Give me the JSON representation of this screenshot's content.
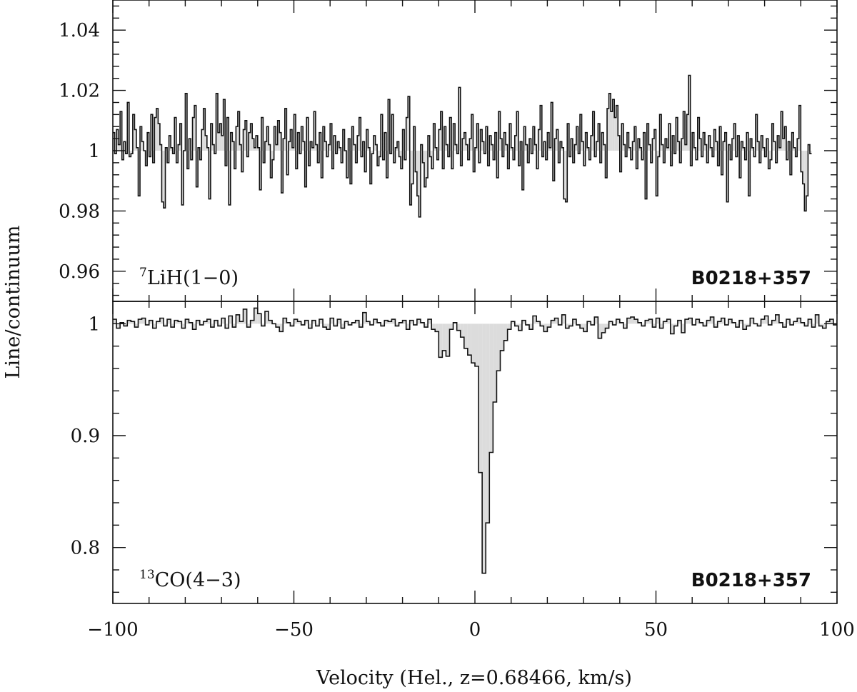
{
  "figure": {
    "ylabel": "Line/continuum",
    "xlabel": "Velocity (Hel., z=0.68466, km/s)"
  },
  "colors": {
    "fill": "#dcdcdc",
    "line": "#111111"
  },
  "chart_data": [
    {
      "type": "line",
      "style": "histogram-step",
      "panel": "top",
      "label_base": "LiH(1−0)",
      "label_sup": "7",
      "source": "B0218+357",
      "xlim": [
        -100,
        100
      ],
      "ylim": [
        0.95,
        1.05
      ],
      "baseline": 1.0,
      "yticks": [
        0.96,
        0.98,
        1.0,
        1.02,
        1.04
      ],
      "ytick_labels": [
        "0.96",
        "0.98",
        "1",
        "1.02",
        "1.04"
      ],
      "x_start": -100,
      "x_step": 0.5,
      "values": [
        1.006,
        0.999,
        1.007,
        1.002,
        1.013,
        0.997,
        1.003,
        0.999,
        1.016,
        0.998,
        0.999,
        1.012,
        1.007,
        1.001,
        0.985,
        1.008,
        1.003,
        1.0,
        0.995,
        1.006,
        0.998,
        1.012,
        0.996,
        1.011,
        1.014,
        1.009,
        1.002,
        0.983,
        0.981,
        1.001,
        0.996,
        1.005,
        1.001,
        0.999,
        1.011,
        0.996,
        1.002,
        1.009,
        0.982,
        1.0,
        1.019,
        0.994,
        1.004,
        0.997,
        1.011,
        1.015,
        0.988,
        1.001,
        0.997,
        1.007,
        1.014,
        1.005,
        1.001,
        0.984,
        1.009,
        1.002,
        0.999,
        1.019,
        1.006,
        1.009,
        1.005,
        1.017,
        0.995,
        1.011,
        0.982,
        1.006,
        1.003,
        0.994,
        1.008,
        1.013,
        1.002,
        0.993,
        1.007,
        1.01,
        0.998,
        1.006,
        1.009,
        1.004,
        1.001,
        1.005,
        1.001,
        0.987,
        1.011,
        0.996,
        1.003,
        1.008,
        1.002,
        0.991,
        0.997,
        1.008,
        1.002,
        1.01,
        1.006,
        0.986,
        1.004,
        1.014,
        0.992,
        1.003,
        1.007,
        1.001,
        1.012,
        0.994,
        1.006,
        0.999,
        1.008,
        1.003,
        0.988,
        1.011,
        0.995,
        1.003,
        1.001,
        1.013,
        1.002,
        0.996,
        1.006,
        0.991,
        1.008,
        1.003,
        0.998,
        1.002,
        1.009,
        0.994,
        1.005,
        0.999,
        1.003,
        1.001,
        0.996,
        1.007,
        1.0,
        0.991,
        1.004,
        0.989,
        1.008,
        1.002,
        0.996,
        1.005,
        1.011,
        0.998,
        1.003,
        0.993,
        1.007,
        1.001,
        0.989,
        0.999,
        1.005,
        1.002,
        0.995,
        0.998,
        1.012,
        0.997,
        1.006,
        0.991,
        1.017,
        0.999,
        1.012,
        0.996,
        1.001,
        1.003,
        0.998,
        0.994,
        1.007,
        0.997,
        1.011,
        1.018,
        0.982,
        0.989,
        1.008,
        0.993,
        0.985,
        0.978,
        1.002,
        0.996,
        0.988,
        0.991,
        1.005,
        0.998,
        0.994,
        1.009,
        1.001,
        0.997,
        1.007,
        1.013,
        0.994,
        1.008,
        1.002,
        0.998,
        1.011,
        0.994,
        1.009,
        1.002,
        0.999,
        1.021,
        0.995,
        1.004,
        1.006,
        1.002,
        0.997,
        1.004,
        1.012,
        0.993,
        1.001,
        1.009,
        0.996,
        1.007,
        1.003,
        0.999,
        1.008,
        0.995,
        1.005,
        1.002,
        0.997,
        1.006,
        0.991,
        1.013,
        1.004,
        0.998,
        1.006,
        1.002,
        0.994,
        1.009,
        1.001,
        0.997,
        1.005,
        1.013,
        0.995,
        1.003,
        0.987,
        1.008,
        1.002,
        0.996,
        1.004,
        0.999,
        1.008,
        1.002,
        0.994,
        1.007,
        1.015,
        0.998,
        1.003,
        0.997,
        1.006,
        1.001,
        1.016,
        0.99,
        1.004,
        1.007,
        0.996,
        1.003,
        1.001,
        0.984,
        0.983,
        1.009,
        0.998,
        1.004,
        0.996,
        1.002,
        1.008,
        0.999,
        1.012,
        1.003,
        0.995,
        1.006,
        1.001,
        0.997,
        1.005,
        1.013,
        0.998,
        1.003,
        1.009,
        0.996,
        1.006,
        1.002,
        0.991,
        1.014,
        1.019,
        1.013,
        1.017,
        1.011,
        1.015,
        1.005,
        0.993,
        1.009,
        1.002,
        0.998,
        1.006,
        1.001,
        0.997,
        1.003,
        1.008,
        0.994,
        1.004,
        1.001,
        0.997,
        1.006,
        0.984,
        1.009,
        1.002,
        0.996,
        1.004,
        1.007,
        0.985,
        0.998,
        1.012,
        1.002,
        0.996,
        1.004,
        1.001,
        1.009,
        0.995,
        1.005,
        0.999,
        1.011,
        1.003,
        0.996,
        1.004,
        1.013,
        1.002,
        1.012,
        1.025,
        0.995,
        1.006,
        1.001,
        0.997,
        1.011,
        1.004,
        0.998,
        1.006,
        1.002,
        0.996,
        1.005,
        1.001,
        0.998,
        1.007,
        1.003,
        0.995,
        1.008,
        0.992,
        1.003,
        1.006,
        0.983,
        1.002,
        0.997,
        1.004,
        1.009,
        0.998,
        1.005,
        0.991,
        1.003,
        1.001,
        0.997,
        1.006,
        0.985,
        1.004,
        1.001,
        0.998,
        1.012,
        1.003,
        0.996,
        1.005,
        1.001,
        0.998,
        1.004,
        0.994,
        0.997,
        1.009,
        1.003,
        0.996,
        1.005,
        1.001,
        1.013,
        1.004,
        1.008,
        0.997,
        1.003,
        0.992,
        1.006,
        1.001,
        0.998,
        1.004,
        1.015,
        0.993,
        0.989,
        0.98,
        0.985,
        1.002,
        0.999
      ]
    },
    {
      "type": "line",
      "style": "histogram-step",
      "panel": "bottom",
      "label_base": "CO(4−3)",
      "label_sup": "13",
      "source": "B0218+357",
      "xlim": [
        -100,
        100
      ],
      "ylim": [
        0.75,
        1.02
      ],
      "baseline": 1.0,
      "yticks": [
        0.8,
        0.9,
        1.0
      ],
      "ytick_labels": [
        "0.8",
        "0.9",
        "1"
      ],
      "x_start": -100,
      "x_step": 1.0,
      "values": [
        1.004,
        0.996,
        1.001,
        0.998,
        1.003,
        1.002,
        0.997,
        1.004,
        1.005,
        0.999,
        1.003,
        0.996,
        1.002,
        1.005,
        0.998,
        1.004,
        0.997,
        1.003,
        1.002,
        0.996,
        1.004,
        1.001,
        0.995,
        1.003,
        0.999,
        1.002,
        1.004,
        0.997,
        1.003,
        0.998,
        1.005,
        0.996,
        1.007,
        0.997,
        1.008,
        1.002,
        1.013,
        0.997,
        1.003,
        1.014,
        1.009,
        0.998,
        1.011,
        1.003,
        1.0,
        0.997,
        0.993,
        1.005,
        1.001,
        0.998,
        1.004,
        1.002,
        0.999,
        1.003,
        0.996,
        1.003,
        0.998,
        1.004,
        0.997,
        0.995,
        1.005,
        0.998,
        1.004,
        0.996,
        1.002,
        0.999,
        1.001,
        1.003,
        0.997,
        1.01,
        1.002,
        0.999,
        1.004,
        1.001,
        0.998,
        1.003,
        1.002,
        1.004,
        0.998,
        1.001,
        1.003,
        0.995,
        1.003,
        0.999,
        1.004,
        1.001,
        0.997,
        1.004,
        0.995,
        0.993,
        0.97,
        0.976,
        0.971,
        0.995,
        1.001,
        0.994,
        0.988,
        0.978,
        0.972,
        0.965,
        0.962,
        0.867,
        0.777,
        0.822,
        0.885,
        0.93,
        0.958,
        0.976,
        0.985,
        0.995,
        1.002,
        0.998,
        0.994,
        1.003,
        0.999,
        0.995,
        1.007,
        1.002,
        0.998,
        0.993,
        0.997,
        1.003,
        1.005,
        0.999,
        1.008,
        0.996,
        0.998,
        1.004,
        0.999,
        0.996,
        0.993,
        1.002,
        0.999,
        1.006,
        0.987,
        0.992,
        0.996,
        1.002,
        0.999,
        1.004,
        1.001,
        0.996,
        1.005,
        1.006,
        1.004,
        1.001,
        0.998,
        1.003,
        1.004,
        0.997,
        1.005,
        0.996,
        1.002,
        1.004,
        0.991,
        0.998,
        1.003,
        0.992,
        1.004,
        1.005,
        0.999,
        1.004,
        1.001,
        0.998,
        1.003,
        1.006,
        0.997,
        1.002,
        1.005,
        0.999,
        1.004,
        1.001,
        0.997,
        1.003,
        0.995,
        0.998,
        1.005,
        1.0,
        0.998,
        1.004,
        1.007,
        0.999,
        1.003,
        1.008,
        1.001,
        0.997,
        1.004,
        0.999,
        1.002,
        1.005,
        1.001,
        0.998,
        1.004,
        0.997,
        1.008,
        0.998,
        0.996,
        1.002,
        1.004,
        0.999,
        1.003,
        1.011
      ]
    }
  ]
}
